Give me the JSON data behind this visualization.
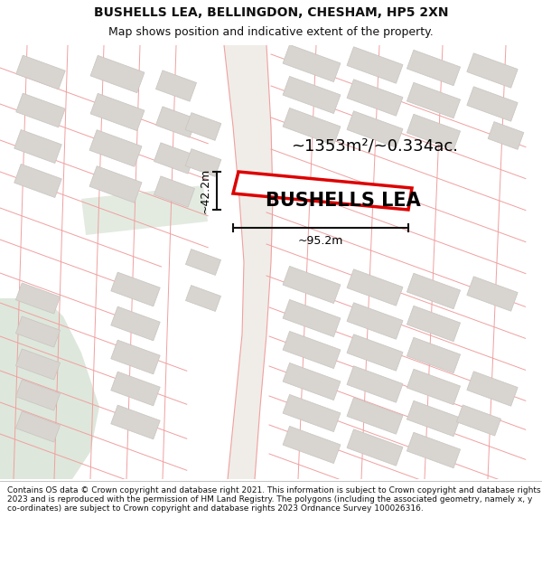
{
  "title_line1": "BUSHELLS LEA, BELLINGDON, CHESHAM, HP5 2XN",
  "title_line2": "Map shows position and indicative extent of the property.",
  "property_label": "BUSHELLS LEA",
  "area_label": "~1353m²/~0.334ac.",
  "dim_height": "~42.2m",
  "dim_width": "~95.2m",
  "footer_text": "Contains OS data © Crown copyright and database right 2021. This information is subject to Crown copyright and database rights 2023 and is reproduced with the permission of HM Land Registry. The polygons (including the associated geometry, namely x, y co-ordinates) are subject to Crown copyright and database rights 2023 Ordnance Survey 100026316.",
  "map_bg": "#ffffff",
  "lot_line_color": "#f0a0a0",
  "building_fill": "#d8d4d0",
  "building_edge": "#c8c4c0",
  "road_fill": "#f5f0ec",
  "green_fill": "#c8d8c4",
  "red_color": "#dd0000",
  "dim_color": "#111111",
  "text_color": "#111111",
  "title_fontsize": 10,
  "subtitle_fontsize": 9,
  "label_fontsize": 15,
  "area_fontsize": 13,
  "dim_fontsize": 9,
  "footer_fontsize": 6.5
}
